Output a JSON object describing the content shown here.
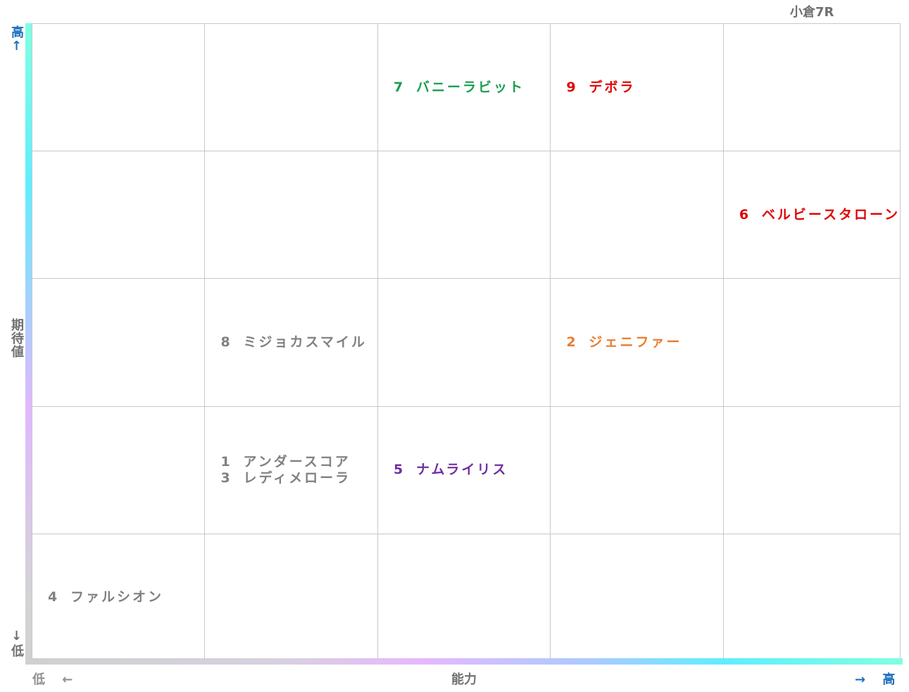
{
  "title": "小倉7R",
  "y_axis": {
    "label": "期待値",
    "high": "高↑",
    "low": "↓低"
  },
  "x_axis": {
    "label": "能力",
    "low": "低 ←",
    "high": "→ 高"
  },
  "grid": {
    "rows": [
      [
        [],
        [],
        [
          {
            "number": "7",
            "name": "バニーラビット",
            "color": "#1a9e50"
          }
        ],
        [
          {
            "number": "9",
            "name": "デボラ",
            "color": "#e00000"
          }
        ],
        []
      ],
      [
        [],
        [],
        [],
        [],
        [
          {
            "number": "6",
            "name": "ベルビースタローン",
            "color": "#e00000"
          }
        ]
      ],
      [
        [],
        [
          {
            "number": "8",
            "name": "ミジョカスマイル",
            "color": "#808080"
          }
        ],
        [],
        [
          {
            "number": "2",
            "name": "ジェニファー",
            "color": "#e87c2c"
          }
        ],
        []
      ],
      [
        [],
        [
          {
            "number": "1",
            "name": "アンダースコア",
            "color": "#808080"
          },
          {
            "number": "3",
            "name": "レディメローラ",
            "color": "#808080"
          }
        ],
        [
          {
            "number": "5",
            "name": "ナムライリス",
            "color": "#7030a0"
          }
        ],
        [],
        []
      ],
      [
        [
          {
            "number": "4",
            "name": "ファルシオン",
            "color": "#808080"
          }
        ],
        [],
        [],
        [],
        []
      ]
    ]
  }
}
